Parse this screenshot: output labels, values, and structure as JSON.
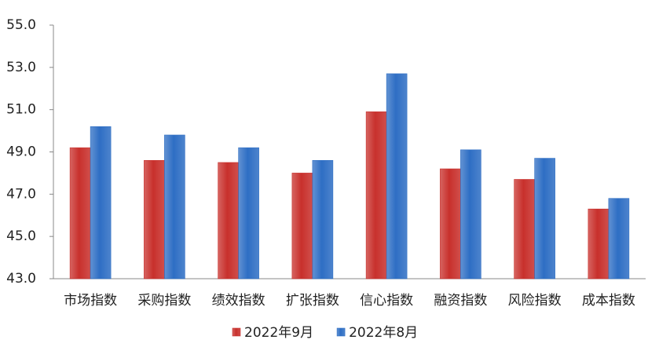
{
  "chart_data": {
    "type": "bar",
    "categories": [
      "市场指数",
      "采购指数",
      "绩效指数",
      "扩张指数",
      "信心指数",
      "融资指数",
      "风险指数",
      "成本指数"
    ],
    "series": [
      {
        "name": "2022年9月",
        "color": "#c8302c",
        "values": [
          49.2,
          48.6,
          48.5,
          48.0,
          50.9,
          48.2,
          47.7,
          46.3
        ]
      },
      {
        "name": "2022年8月",
        "color": "#2e6ec4",
        "values": [
          50.2,
          49.8,
          49.2,
          48.6,
          52.7,
          49.1,
          48.7,
          46.8
        ]
      }
    ],
    "ylim": [
      43,
      55
    ],
    "yticks": [
      {
        "value": 43,
        "label": "43.0"
      },
      {
        "value": 45,
        "label": "45.0"
      },
      {
        "value": 47,
        "label": "47.0"
      },
      {
        "value": 49,
        "label": "49.0"
      },
      {
        "value": 51,
        "label": "51.0"
      },
      {
        "value": 53,
        "label": "53.0"
      },
      {
        "value": 55,
        "label": "55.0"
      }
    ],
    "grid": false,
    "legend": "bottom"
  }
}
